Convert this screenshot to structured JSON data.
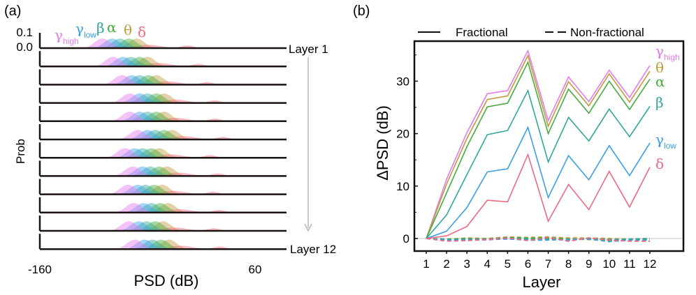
{
  "colors": {
    "gamma_high": "#e47af0",
    "gamma_low": "#3a9fe6",
    "beta": "#2fa89b",
    "alpha": "#44ad3c",
    "theta": "#c09a3b",
    "delta": "#f0687f"
  },
  "chart_data": [
    {
      "panel_label": "(a)",
      "type": "area",
      "xlabel": "PSD (dB)",
      "ylabel": "Prob",
      "xlim": [
        -160,
        60
      ],
      "xticks": [
        "-160",
        "60"
      ],
      "yticks": [
        "0.1",
        "0.0"
      ],
      "ylim": [
        0,
        0.1
      ],
      "row_labels": [
        "Layer 1",
        "Layer 12"
      ],
      "layers": 12,
      "band_labels": [
        {
          "key": "gamma_high",
          "sym": "γ",
          "sub": "high"
        },
        {
          "key": "gamma_low",
          "sym": "γ",
          "sub": "low"
        },
        {
          "key": "beta",
          "sym": "β",
          "sub": ""
        },
        {
          "key": "alpha",
          "sym": "α",
          "sub": ""
        },
        {
          "key": "theta",
          "sym": "θ",
          "sub": ""
        },
        {
          "key": "delta",
          "sym": "δ",
          "sub": ""
        }
      ],
      "peak_psd_db": {
        "gamma_high": [
          -94,
          -83,
          -74,
          -66,
          -66,
          -58,
          -71,
          -63,
          -68,
          -62,
          -67,
          -61
        ],
        "gamma_low": [
          -84,
          -73,
          -64,
          -56,
          -56,
          -48,
          -61,
          -53,
          -58,
          -52,
          -57,
          -51
        ],
        "beta": [
          -76,
          -65,
          -56,
          -48,
          -48,
          -40,
          -53,
          -45,
          -50,
          -44,
          -49,
          -43
        ],
        "alpha": [
          -67,
          -56,
          -47,
          -39,
          -39,
          -31,
          -44,
          -36,
          -41,
          -35,
          -40,
          -34
        ],
        "theta": [
          -59,
          -48,
          -39,
          -31,
          -31,
          -23,
          -36,
          -28,
          -33,
          -27,
          -32,
          -26
        ],
        "delta": [
          -49,
          -38,
          -29,
          -21,
          -21,
          -13,
          -26,
          -18,
          -23,
          -17,
          -22,
          -16
        ],
        "delta_secondary": [
          -9,
          2,
          11,
          19,
          19,
          27,
          14,
          22,
          17,
          23,
          18,
          24
        ]
      }
    },
    {
      "panel_label": "(b)",
      "type": "line",
      "xlabel": "Layer",
      "ylabel": "ΔPSD (dB)",
      "x": [
        1,
        2,
        3,
        4,
        5,
        6,
        7,
        8,
        9,
        10,
        11,
        12
      ],
      "xticks": [
        "1",
        "2",
        "3",
        "4",
        "5",
        "6",
        "7",
        "8",
        "9",
        "10",
        "11",
        "12"
      ],
      "yticks": [
        "0",
        "10",
        "20",
        "30"
      ],
      "ylim": [
        -2.5,
        37.5
      ],
      "legend": {
        "solid": "Fractional",
        "dashed": "Non-fractional",
        "placement": "top"
      },
      "series": [
        {
          "key": "gamma_high",
          "sym": "γ",
          "sub": "high",
          "fractional": [
            0,
            11.3,
            20.2,
            27.6,
            28.2,
            35.8,
            22.5,
            30.8,
            26.1,
            32.1,
            26.9,
            33.0
          ],
          "non_fractional": [
            0,
            -0.3,
            -0.1,
            -0.3,
            0.1,
            -0.2,
            0.0,
            -0.4,
            0.0,
            -0.2,
            -0.3,
            -0.1
          ]
        },
        {
          "key": "theta",
          "sym": "θ",
          "sub": "",
          "fractional": [
            0,
            10.4,
            19.1,
            26.5,
            27.2,
            34.9,
            21.4,
            29.9,
            25.3,
            31.4,
            26.0,
            31.9
          ],
          "non_fractional": [
            0,
            -0.2,
            0.1,
            0.0,
            0.3,
            0.2,
            0.3,
            0.1,
            0.1,
            0.0,
            -0.1,
            0.0
          ]
        },
        {
          "key": "alpha",
          "sym": "α",
          "sub": "",
          "fractional": [
            0,
            8.7,
            17.5,
            25.1,
            25.8,
            33.6,
            20.0,
            28.5,
            23.9,
            30.0,
            24.6,
            30.4
          ],
          "non_fractional": [
            0,
            -0.1,
            0.0,
            -0.1,
            0.2,
            0.1,
            0.1,
            -0.1,
            -0.2,
            -0.4,
            -0.2,
            -0.1
          ]
        },
        {
          "key": "beta",
          "sym": "β",
          "sub": "",
          "fractional": [
            0,
            4.5,
            12.2,
            19.8,
            20.6,
            28.2,
            14.6,
            23.1,
            18.6,
            24.7,
            19.4,
            25.2
          ],
          "non_fractional": [
            0,
            -0.2,
            -0.2,
            -0.1,
            0.0,
            -0.1,
            -0.1,
            -0.3,
            0.0,
            -0.2,
            -0.1,
            0.0
          ]
        },
        {
          "key": "gamma_low",
          "sym": "γ",
          "sub": "low",
          "fractional": [
            0,
            1.4,
            5.9,
            12.7,
            13.3,
            21.2,
            7.8,
            15.8,
            11.2,
            17.7,
            12.0,
            18.2
          ],
          "non_fractional": [
            0,
            -0.3,
            -0.3,
            -0.2,
            -0.1,
            -0.3,
            -0.3,
            -0.2,
            -0.1,
            -0.6,
            -0.3,
            -0.3
          ]
        },
        {
          "key": "delta",
          "sym": "δ",
          "sub": "",
          "fractional": [
            0,
            0.5,
            2.3,
            7.3,
            7.0,
            16.0,
            3.3,
            10.3,
            5.5,
            12.8,
            6.0,
            13.6
          ],
          "non_fractional": [
            0,
            -0.5,
            -0.4,
            -0.2,
            0.1,
            -0.4,
            0.2,
            -0.5,
            0.1,
            -0.3,
            -0.5,
            -0.5
          ]
        }
      ]
    }
  ]
}
